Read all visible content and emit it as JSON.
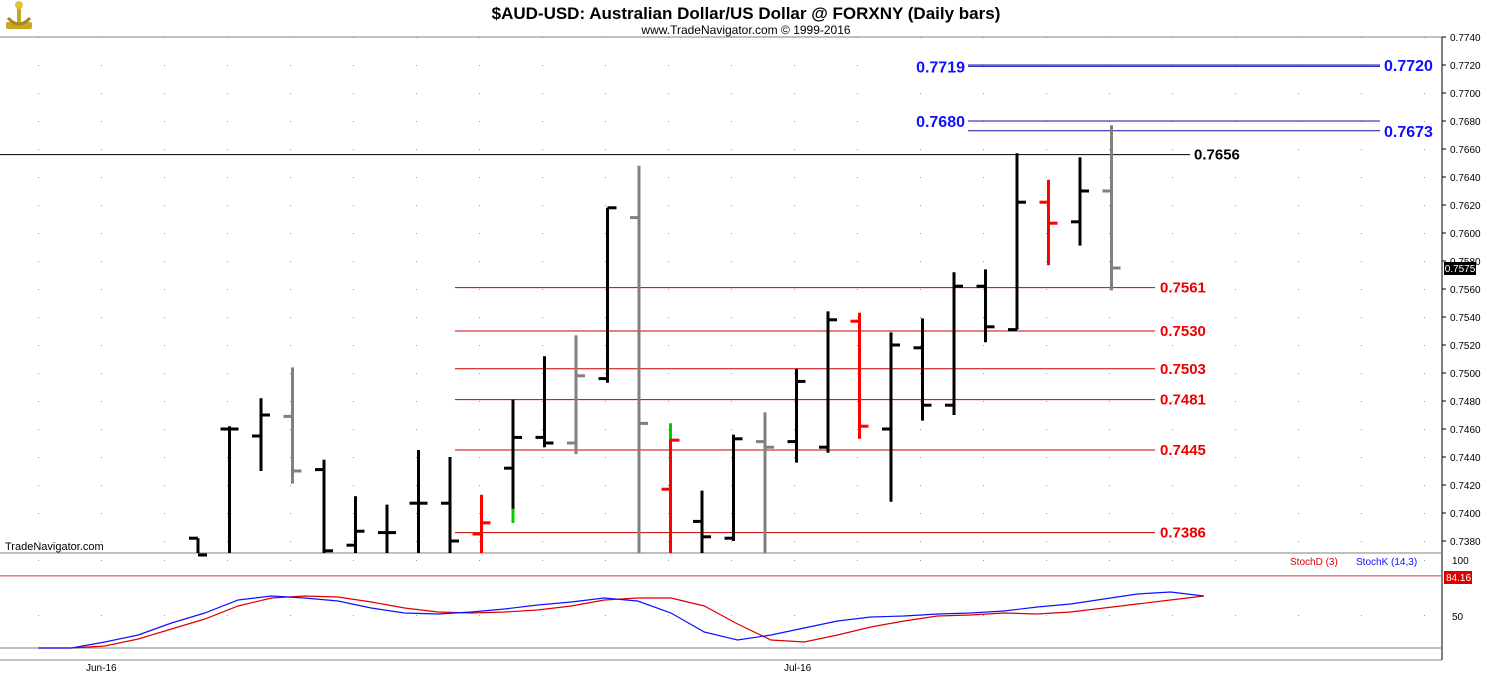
{
  "header": {
    "title": "$AUD-USD:  Australian Dollar/US Dollar @ FORXNY  (Daily bars)",
    "subtitle": "www.TradeNavigator.com © 1999-2016",
    "logo_icon": "anchor-logo-icon"
  },
  "watermark": "TradeNavigator.com",
  "colors": {
    "up": "#000000",
    "gray": "#808080",
    "red": "#ff0000",
    "green": "#00cc00",
    "blue": "#1010ff",
    "stochD": "#dd0000",
    "stochK": "#1010ff"
  },
  "chart_data": {
    "type": "ohlc",
    "y_ticks": [
      "0.7740",
      "0.7720",
      "0.7700",
      "0.7680",
      "0.7660",
      "0.7640",
      "0.7620",
      "0.7600",
      "0.7580",
      "0.7560",
      "0.7540",
      "0.7520",
      "0.7500",
      "0.7480",
      "0.7460",
      "0.7440",
      "0.7420",
      "0.7400",
      "0.7380"
    ],
    "x_labels": [
      "Jun-16",
      "Jul-16"
    ],
    "last_price": "0.7575",
    "bars": [
      {
        "o": 0.7382,
        "h": 0.7382,
        "l": 0.736,
        "c": 0.737,
        "color": "black"
      },
      {
        "o": 0.746,
        "h": 0.7462,
        "l": 0.736,
        "c": 0.746,
        "color": "black"
      },
      {
        "o": 0.7455,
        "h": 0.7482,
        "l": 0.743,
        "c": 0.747,
        "color": "black"
      },
      {
        "o": 0.7469,
        "h": 0.7504,
        "l": 0.7421,
        "c": 0.743,
        "color": "gray"
      },
      {
        "o": 0.7431,
        "h": 0.7438,
        "l": 0.736,
        "c": 0.7373,
        "color": "black"
      },
      {
        "o": 0.7377,
        "h": 0.7412,
        "l": 0.736,
        "c": 0.7387,
        "color": "black"
      },
      {
        "o": 0.7386,
        "h": 0.7406,
        "l": 0.736,
        "c": 0.7386,
        "color": "black"
      },
      {
        "o": 0.7407,
        "h": 0.7445,
        "l": 0.736,
        "c": 0.7407,
        "color": "black"
      },
      {
        "o": 0.7407,
        "h": 0.744,
        "l": 0.736,
        "c": 0.738,
        "color": "black"
      },
      {
        "o": 0.7385,
        "h": 0.7413,
        "l": 0.736,
        "c": 0.7393,
        "color": "red"
      },
      {
        "o": 0.7432,
        "h": 0.7481,
        "l": 0.7393,
        "c": 0.7454,
        "color": "black",
        "low_color": "green"
      },
      {
        "o": 0.7454,
        "h": 0.7512,
        "l": 0.7447,
        "c": 0.745,
        "color": "black"
      },
      {
        "o": 0.745,
        "h": 0.7527,
        "l": 0.7442,
        "c": 0.7498,
        "color": "gray"
      },
      {
        "o": 0.7496,
        "h": 0.7618,
        "l": 0.7493,
        "c": 0.7618,
        "color": "black"
      },
      {
        "o": 0.7611,
        "h": 0.7648,
        "l": 0.736,
        "c": 0.7464,
        "color": "gray"
      },
      {
        "o": 0.7417,
        "h": 0.7464,
        "l": 0.736,
        "c": 0.7452,
        "color": "red",
        "high_color": "green"
      },
      {
        "o": 0.7394,
        "h": 0.7416,
        "l": 0.736,
        "c": 0.7383,
        "color": "black"
      },
      {
        "o": 0.7382,
        "h": 0.7456,
        "l": 0.738,
        "c": 0.7453,
        "color": "black"
      },
      {
        "o": 0.7451,
        "h": 0.7472,
        "l": 0.737,
        "c": 0.7447,
        "color": "gray"
      },
      {
        "o": 0.7451,
        "h": 0.7503,
        "l": 0.7436,
        "c": 0.7494,
        "color": "black"
      },
      {
        "o": 0.7447,
        "h": 0.7544,
        "l": 0.7443,
        "c": 0.7538,
        "color": "black"
      },
      {
        "o": 0.7537,
        "h": 0.7543,
        "l": 0.7453,
        "c": 0.7462,
        "color": "red"
      },
      {
        "o": 0.746,
        "h": 0.7529,
        "l": 0.7408,
        "c": 0.752,
        "color": "black"
      },
      {
        "o": 0.7518,
        "h": 0.7539,
        "l": 0.7466,
        "c": 0.7477,
        "color": "black"
      },
      {
        "o": 0.7477,
        "h": 0.7572,
        "l": 0.747,
        "c": 0.7562,
        "color": "black"
      },
      {
        "o": 0.7562,
        "h": 0.7574,
        "l": 0.7522,
        "c": 0.7533,
        "color": "black"
      },
      {
        "o": 0.7531,
        "h": 0.7657,
        "l": 0.7531,
        "c": 0.7622,
        "color": "black"
      },
      {
        "o": 0.7622,
        "h": 0.7638,
        "l": 0.7577,
        "c": 0.7607,
        "color": "red"
      },
      {
        "o": 0.7608,
        "h": 0.7654,
        "l": 0.7591,
        "c": 0.763,
        "color": "black"
      },
      {
        "o": 0.763,
        "h": 0.7677,
        "l": 0.7559,
        "c": 0.7575,
        "color": "gray"
      }
    ],
    "levels": [
      {
        "value": 0.7656,
        "label": "0.7656",
        "color": "black",
        "style": "full"
      },
      {
        "value": 0.7561,
        "label": "0.7561",
        "color": "red",
        "style": "red"
      },
      {
        "value": 0.753,
        "label": "0.7530",
        "color": "red",
        "style": "red"
      },
      {
        "value": 0.7503,
        "label": "0.7503",
        "color": "red",
        "style": "red"
      },
      {
        "value": 0.7481,
        "label": "0.7481",
        "color": "red",
        "style": "red"
      },
      {
        "value": 0.7445,
        "label": "0.7445",
        "color": "red",
        "style": "red"
      },
      {
        "value": 0.7386,
        "label": "0.7386",
        "color": "red",
        "style": "red"
      }
    ],
    "blue_levels": [
      {
        "left_label": "0.7719",
        "right_label": "0.7720",
        "left_value": 0.7719,
        "right_value": 0.772
      },
      {
        "left_label": "0.7680",
        "right_label": "0.7673",
        "left_value": 0.768,
        "right_value": 0.7673
      }
    ],
    "oscillator": {
      "legend_d": "StochD (3)",
      "legend_k": "StochK (14,3)",
      "tick_100": "100",
      "tick_50": "50",
      "level_line": 84.16,
      "level_label": "84.16",
      "stochD": [
        null,
        10,
        11,
        14,
        21,
        31,
        41,
        54,
        62,
        64,
        63,
        58,
        52,
        48,
        47,
        48,
        50,
        54,
        60,
        62,
        62,
        54,
        36,
        20,
        18,
        25,
        33,
        39,
        44,
        45,
        47,
        46,
        48,
        52,
        56,
        60,
        64
      ],
      "stochK": [
        null,
        10,
        11,
        18,
        25,
        37,
        47,
        60,
        64,
        62,
        59,
        52,
        47,
        46,
        48,
        51,
        55,
        58,
        62,
        59,
        47,
        28,
        20,
        25,
        32,
        39,
        43,
        44,
        46,
        47,
        49,
        53,
        56,
        61,
        66,
        68,
        64
      ]
    }
  }
}
